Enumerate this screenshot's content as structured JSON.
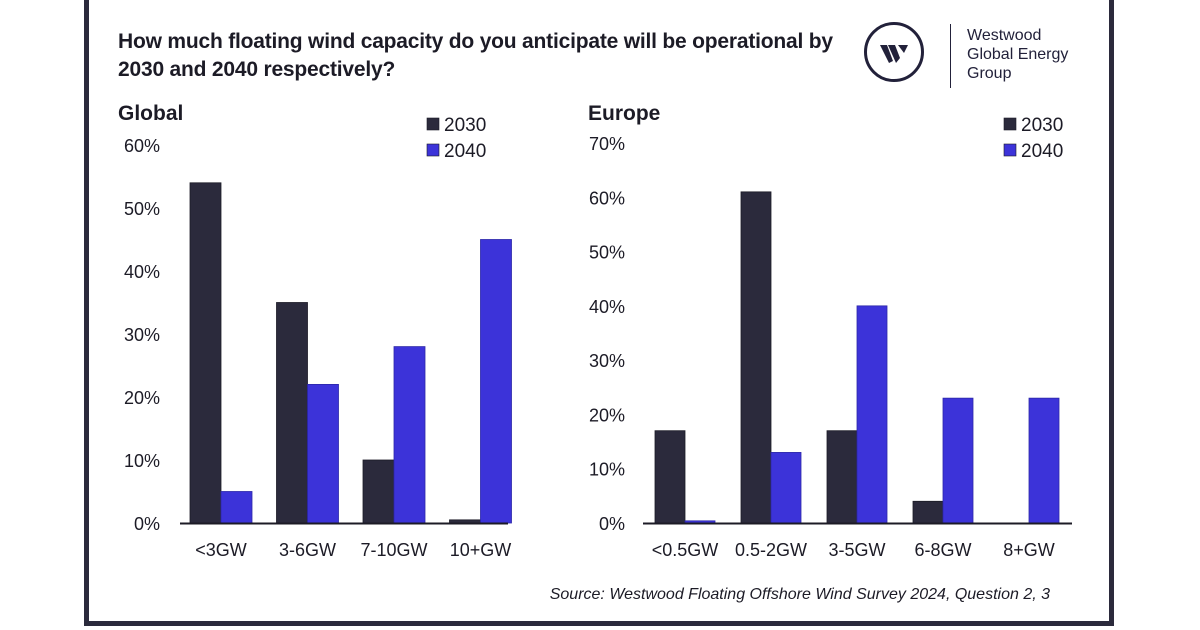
{
  "title": "How much floating wind capacity do you anticipate will be operational by 2030 and 2040 respectively?",
  "logo": {
    "icon": "westwood-w-logo-icon",
    "lines": [
      "Westwood",
      "Global Energy",
      "Group"
    ]
  },
  "source": "Source: Westwood Floating Offshore Wind Survey 2024, Question 2, 3",
  "colors": {
    "series_2030": "#2b2a3c",
    "series_2040": "#3c33d9",
    "axis": "#1c1b26",
    "frame": "#2b2a3c"
  },
  "chart_data": [
    {
      "type": "bar",
      "title": "Global",
      "xlabel": "",
      "ylabel": "",
      "ylim": [
        0,
        60
      ],
      "yticks": [
        0,
        10,
        20,
        30,
        40,
        50,
        60
      ],
      "ytick_labels": [
        "0%",
        "10%",
        "20%",
        "30%",
        "40%",
        "50%",
        "60%"
      ],
      "grid": false,
      "legend": "top-right",
      "categories": [
        "<3GW",
        "3-6GW",
        "7-10GW",
        "10+GW"
      ],
      "series": [
        {
          "name": "2030",
          "values": [
            54,
            35,
            10,
            0.5
          ]
        },
        {
          "name": "2040",
          "values": [
            5,
            22,
            28,
            45
          ]
        }
      ]
    },
    {
      "type": "bar",
      "title": "Europe",
      "xlabel": "",
      "ylabel": "",
      "ylim": [
        0,
        70
      ],
      "yticks": [
        0,
        10,
        20,
        30,
        40,
        50,
        60,
        70
      ],
      "ytick_labels": [
        "0%",
        "10%",
        "20%",
        "30%",
        "40%",
        "50%",
        "60%",
        "70%"
      ],
      "grid": false,
      "legend": "top-right",
      "categories": [
        "<0.5GW",
        "0.5-2GW",
        "3-5GW",
        "6-8GW",
        "8+GW"
      ],
      "series": [
        {
          "name": "2030",
          "values": [
            17,
            61,
            17,
            4,
            0
          ]
        },
        {
          "name": "2040",
          "values": [
            0.4,
            13,
            40,
            23,
            23
          ]
        }
      ]
    }
  ]
}
